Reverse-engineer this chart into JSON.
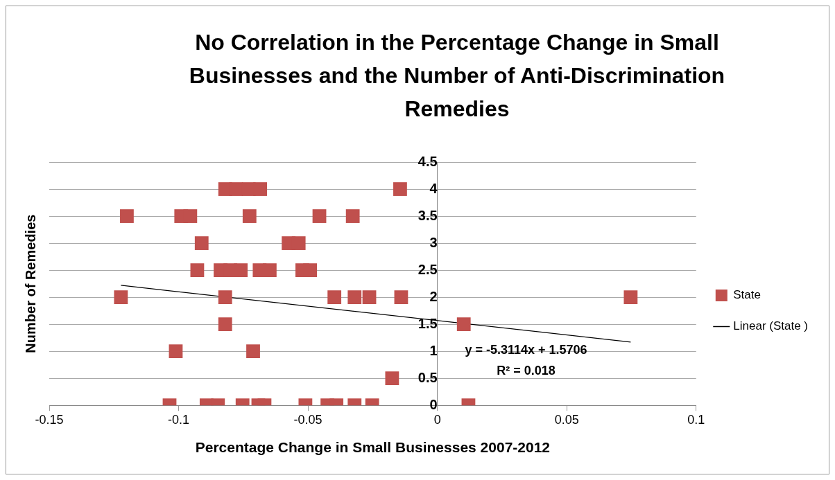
{
  "chart_data": {
    "type": "scatter",
    "title": "No Correlation in the Percentage Change in Small Businesses and the Number of Anti-Discrimination Remedies",
    "xlabel": "Percentage Change in Small Businesses 2007-2012",
    "ylabel": "Number of Remedies",
    "series": [
      {
        "name": "State",
        "type": "scatter",
        "color": "#c0504d",
        "marker": "square",
        "x": [
          -0.082,
          -0.0778,
          -0.0729,
          -0.0685,
          -0.0144,
          -0.12,
          -0.099,
          -0.0955,
          -0.0726,
          -0.0456,
          -0.0327,
          -0.0911,
          -0.0575,
          -0.0536,
          -0.0928,
          -0.0838,
          -0.08,
          -0.076,
          -0.0687,
          -0.0648,
          -0.0522,
          -0.0492,
          -0.1223,
          -0.082,
          -0.0398,
          -0.032,
          -0.0263,
          -0.014,
          0.0747,
          -0.082,
          0.0102,
          -0.1011,
          -0.0712,
          -0.0175,
          -0.1035,
          -0.0892,
          -0.0848,
          -0.0753,
          -0.0692,
          -0.0668,
          -0.051,
          -0.0425,
          -0.039,
          -0.032,
          -0.0252,
          0.012
        ],
        "values": [
          4,
          4,
          4,
          4,
          4,
          3.5,
          3.5,
          3.5,
          3.5,
          3.5,
          3.5,
          3,
          3,
          3,
          2.5,
          2.5,
          2.5,
          2.5,
          2.5,
          2.5,
          2.5,
          2.5,
          2,
          2,
          2,
          2,
          2,
          2,
          2,
          1.5,
          1.5,
          1,
          1,
          0.5,
          0,
          0,
          0,
          0,
          0,
          0,
          0,
          0,
          0,
          0,
          0,
          0
        ]
      },
      {
        "name": "Linear (State )",
        "type": "line",
        "color": "#000000",
        "marker": "none",
        "x": [
          -0.1223,
          0.0747
        ],
        "values": [
          2.22,
          1.17
        ]
      }
    ],
    "xlim": [
      -0.15,
      0.1
    ],
    "xticks": [
      -0.15,
      -0.1,
      -0.05,
      0,
      0.05,
      0.1
    ],
    "ylim": [
      0,
      4.5
    ],
    "yticks": [
      0,
      0.5,
      1,
      1.5,
      2,
      2.5,
      3,
      3.5,
      4,
      4.5
    ],
    "grid": "y",
    "legend": "right",
    "annotations": [
      "y = -5.3114x + 1.5706",
      "R² = 0.018"
    ]
  }
}
